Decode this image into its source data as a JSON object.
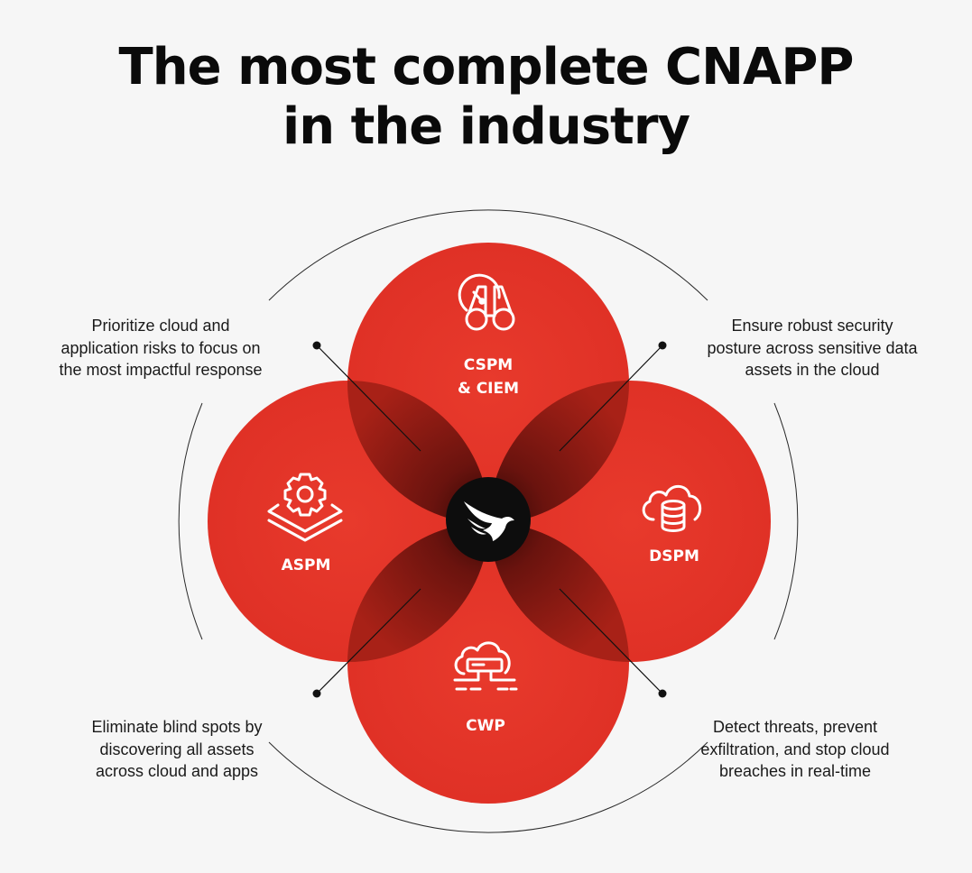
{
  "title": [
    "The most complete CNAPP",
    "in the industry"
  ],
  "modules": {
    "top": {
      "label_lines": [
        "CSPM",
        "& CIEM"
      ],
      "icon": "gauge-binoculars-icon"
    },
    "left": {
      "label_lines": [
        "ASPM"
      ],
      "icon": "gear-layers-icon"
    },
    "right": {
      "label_lines": [
        "DSPM"
      ],
      "icon": "cloud-database-icon"
    },
    "bottom": {
      "label_lines": [
        "CWP"
      ],
      "icon": "cloud-server-icon"
    }
  },
  "center": {
    "icon": "falcon-logo-icon"
  },
  "callouts": {
    "top_left": [
      "Prioritize cloud and",
      "application risks to focus on",
      "the most impactful response"
    ],
    "top_right": [
      "Ensure robust security",
      "posture across sensitive data",
      "assets in the cloud"
    ],
    "bottom_left": [
      "Eliminate blind spots by",
      "discovering all assets",
      "across cloud and apps"
    ],
    "bottom_right": [
      "Detect threats, prevent",
      "exfiltration, and stop cloud",
      "breaches in real-time"
    ]
  },
  "colors": {
    "circle_red": "#e5352a",
    "overlap_red": "#8f1b14",
    "center": "#0d0d0d",
    "background": "#f6f6f6"
  }
}
